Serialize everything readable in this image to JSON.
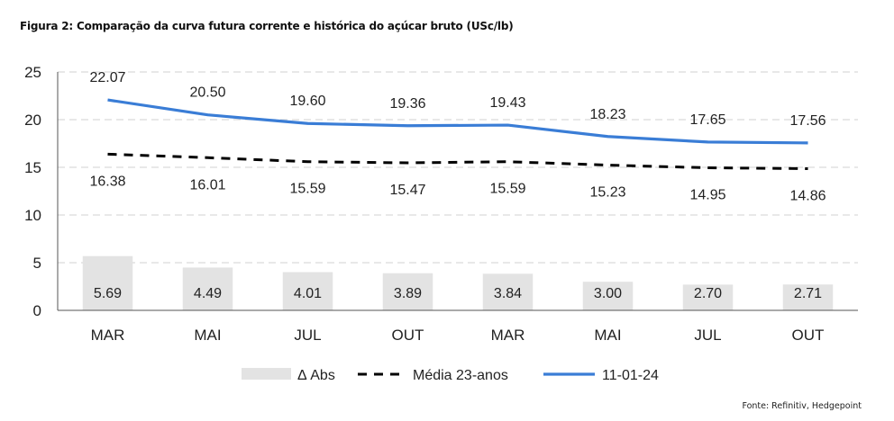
{
  "header": {
    "title": "Figura 2: Comparação da curva futura corrente e histórica do açúcar bruto (USc/lb)"
  },
  "footer": {
    "source": "Fonte: Refinitiv, Hedgepoint"
  },
  "chart_data": {
    "type": "bar",
    "title": "Figura 2: Comparação da curva futura corrente e histórica do açúcar bruto (USc/lb)",
    "xlabel": "",
    "ylabel": "",
    "ylim": [
      0,
      25
    ],
    "yticks": [
      "0",
      "5",
      "10",
      "15",
      "20",
      "25"
    ],
    "grid": true,
    "legend_position": "bottom",
    "categories": [
      "MAR",
      "MAI",
      "JUL",
      "OUT",
      "MAR",
      "MAI",
      "JUL",
      "OUT"
    ],
    "series": [
      {
        "name": "Δ Abs",
        "kind": "bar",
        "color": "#e3e3e3",
        "values": [
          5.69,
          4.49,
          4.01,
          3.89,
          3.84,
          3.0,
          2.7,
          2.71
        ],
        "labels": [
          "5.69",
          "4.49",
          "4.01",
          "3.89",
          "3.84",
          "3.00",
          "2.70",
          "2.71"
        ]
      },
      {
        "name": "Média 23-anos",
        "kind": "dashed-line",
        "color": "#000000",
        "values": [
          16.38,
          16.01,
          15.59,
          15.47,
          15.59,
          15.23,
          14.95,
          14.86
        ],
        "labels": [
          "16.38",
          "16.01",
          "15.59",
          "15.47",
          "15.59",
          "15.23",
          "14.95",
          "14.86"
        ]
      },
      {
        "name": "11-01-24",
        "kind": "line",
        "color": "#3a7dd6",
        "values": [
          22.07,
          20.5,
          19.6,
          19.36,
          19.43,
          18.23,
          17.65,
          17.56
        ],
        "labels": [
          "22.07",
          "20.50",
          "19.60",
          "19.36",
          "19.43",
          "18.23",
          "17.65",
          "17.56"
        ]
      }
    ]
  }
}
